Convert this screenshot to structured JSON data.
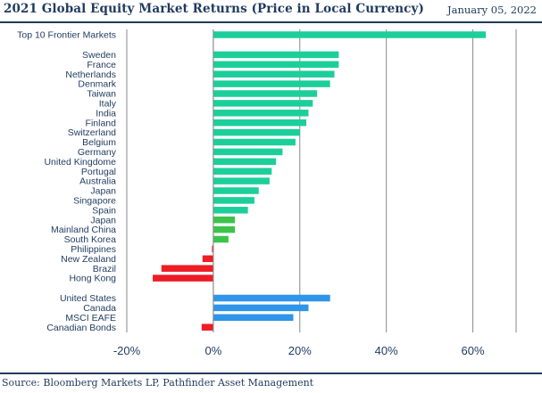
{
  "header": {
    "title": "2021 Global Equity Market Returns (Price in Local Currency)",
    "date": "January 05, 2022"
  },
  "footer": {
    "source": "Source: Bloomberg Markets LP, Pathfinder Asset Management"
  },
  "colors": {
    "teal": "#1ccf9a",
    "green": "#3bc44b",
    "red": "#ee1c25",
    "blue": "#2e95e8",
    "grid": "#8a8a8a",
    "text": "#1f3a5f"
  },
  "chart_data": {
    "type": "bar",
    "orientation": "horizontal",
    "title": "2021 Global Equity Market Returns (Price in Local Currency)",
    "xlabel": "",
    "ylabel": "",
    "xlim": [
      -20,
      70
    ],
    "xticks": [
      -20,
      0,
      20,
      40,
      60
    ],
    "tick_format": "percent",
    "grid": true,
    "legend": "none",
    "groups": [
      {
        "name": "frontier",
        "items": [
          {
            "label": "Top 10 Frontier Markets",
            "value": 63,
            "color": "teal"
          }
        ]
      },
      {
        "name": "countries",
        "items": [
          {
            "label": "Sweden",
            "value": 29,
            "color": "teal"
          },
          {
            "label": "France",
            "value": 29,
            "color": "teal"
          },
          {
            "label": "Netherlands",
            "value": 28,
            "color": "teal"
          },
          {
            "label": "Denmark",
            "value": 27,
            "color": "teal"
          },
          {
            "label": "Taiwan",
            "value": 24,
            "color": "teal"
          },
          {
            "label": "Italy",
            "value": 23,
            "color": "teal"
          },
          {
            "label": "India",
            "value": 22,
            "color": "teal"
          },
          {
            "label": "Finland",
            "value": 21.5,
            "color": "teal"
          },
          {
            "label": "Switzerland",
            "value": 20,
            "color": "teal"
          },
          {
            "label": "Belgium",
            "value": 19,
            "color": "teal"
          },
          {
            "label": "Germany",
            "value": 16,
            "color": "teal"
          },
          {
            "label": "United Kingdome",
            "value": 14.5,
            "color": "teal"
          },
          {
            "label": "Portugal",
            "value": 13.5,
            "color": "teal"
          },
          {
            "label": "Australia",
            "value": 13,
            "color": "teal"
          },
          {
            "label": "Japan",
            "value": 10.5,
            "color": "teal"
          },
          {
            "label": "Singapore",
            "value": 9.5,
            "color": "teal"
          },
          {
            "label": "Spain",
            "value": 8,
            "color": "teal"
          },
          {
            "label": "Japan",
            "value": 5,
            "color": "green"
          },
          {
            "label": "Mainland China",
            "value": 5,
            "color": "green"
          },
          {
            "label": "South Korea",
            "value": 3.5,
            "color": "green"
          },
          {
            "label": "Philippines",
            "value": -0.3,
            "color": "red"
          },
          {
            "label": "New Zealand",
            "value": -2.5,
            "color": "red"
          },
          {
            "label": "Brazil",
            "value": -12,
            "color": "red"
          },
          {
            "label": "Hong Kong",
            "value": -14,
            "color": "red"
          }
        ]
      },
      {
        "name": "benchmarks",
        "items": [
          {
            "label": "United States",
            "value": 27,
            "color": "blue"
          },
          {
            "label": "Canada",
            "value": 22,
            "color": "blue"
          },
          {
            "label": "MSCI EAFE",
            "value": 18.5,
            "color": "blue"
          },
          {
            "label": "Canadian Bonds",
            "value": -2.7,
            "color": "red"
          }
        ]
      }
    ]
  }
}
